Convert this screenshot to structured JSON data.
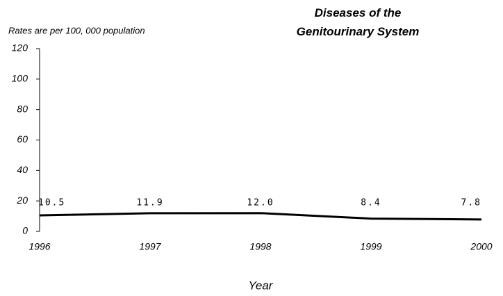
{
  "chart_data": {
    "type": "line",
    "title": "Diseases of the Genitourinary System",
    "subtitle": "Rates are per 100, 000 population",
    "x_label": "Year",
    "categories": [
      "1996",
      "1997",
      "1998",
      "1999",
      "2000"
    ],
    "series": [
      {
        "name": "Rate",
        "color": "#000000",
        "values": [
          10.5,
          11.9,
          12.0,
          8.4,
          7.8
        ],
        "value_labels": [
          "10.5",
          "11.9",
          "12.0",
          "8.4",
          "7.8"
        ]
      }
    ],
    "ylim": [
      0,
      120
    ],
    "yticks": [
      0,
      20,
      40,
      60,
      80,
      100,
      120
    ]
  }
}
